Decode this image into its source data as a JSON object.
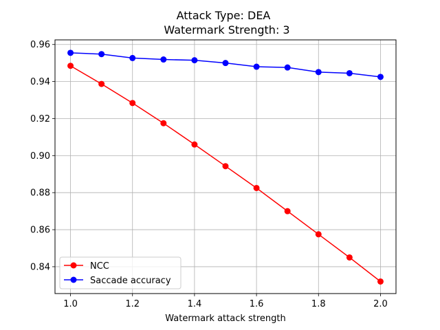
{
  "chart_data": {
    "type": "line",
    "title": "Attack Type: DEA",
    "subtitle": "Watermark Strength: 3",
    "xlabel": "Watermark attack strength",
    "ylabel": "",
    "x": [
      1.0,
      1.1,
      1.2,
      1.3,
      1.4,
      1.5,
      1.6,
      1.7,
      1.8,
      1.9,
      2.0
    ],
    "xlim": [
      0.95,
      2.05
    ],
    "ylim": [
      0.8255,
      0.9625
    ],
    "xticks": [
      1.0,
      1.2,
      1.4,
      1.6,
      1.8,
      2.0
    ],
    "xtick_labels": [
      "1.0",
      "1.2",
      "1.4",
      "1.6",
      "1.8",
      "2.0"
    ],
    "yticks": [
      0.84,
      0.86,
      0.88,
      0.9,
      0.92,
      0.94,
      0.96
    ],
    "ytick_labels": [
      "0.84",
      "0.86",
      "0.88",
      "0.90",
      "0.92",
      "0.94",
      "0.96"
    ],
    "grid": true,
    "legend_position": "lower-left",
    "series": [
      {
        "name": "NCC",
        "color": "#ff0000",
        "values": [
          0.9485,
          0.9387,
          0.9284,
          0.9175,
          0.906,
          0.8943,
          0.8825,
          0.87,
          0.8575,
          0.845,
          0.832
        ]
      },
      {
        "name": "Saccade accuracy",
        "color": "#0000ff",
        "values": [
          0.9555,
          0.9548,
          0.9527,
          0.9519,
          0.9515,
          0.95,
          0.948,
          0.9476,
          0.9451,
          0.9445,
          0.9425
        ]
      }
    ]
  }
}
